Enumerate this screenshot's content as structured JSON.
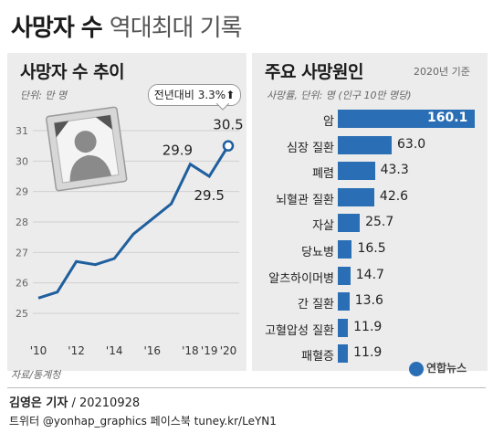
{
  "header": {
    "title_bold": "사망자 수",
    "title_rest": "역대최대 기록"
  },
  "colors": {
    "bar": "#2a6fb5",
    "line": "#1f5f9e",
    "accent": "#2a6fb5",
    "panel": "#ececec"
  },
  "left": {
    "title": "사망자 수 추이",
    "unit": "단위: 만 명",
    "callout_label": "전년대비",
    "callout_value": "3.3%",
    "callout_arrow": "⬆",
    "source": "자료/통계청"
  },
  "right": {
    "title": "주요 사망원인",
    "base": "2020년 기준",
    "unit": "사망률, 단위: 명 (인구 10만 명당)"
  },
  "footer": {
    "reporter": "김영은 기자",
    "date": " / 20210928",
    "sns": "트위터 @yonhap_graphics  페이스북 tuney.kr/LeYN1",
    "brand": "연합뉴스"
  },
  "chart_data": [
    {
      "type": "line",
      "x": [
        2010,
        2011,
        2012,
        2013,
        2014,
        2015,
        2016,
        2017,
        2018,
        2019,
        2020
      ],
      "values": [
        25.5,
        25.7,
        26.7,
        26.6,
        26.8,
        27.6,
        28.1,
        28.6,
        29.9,
        29.5,
        30.5
      ],
      "ylim": [
        25,
        31
      ],
      "yticks": [
        25,
        26,
        27,
        28,
        29,
        30,
        31
      ],
      "xtick_labels": [
        "'10",
        "'12",
        "'14",
        "'16",
        "'18",
        "'19",
        "'20"
      ],
      "xtick_years": [
        2010,
        2012,
        2014,
        2016,
        2018,
        2019,
        2020
      ],
      "data_labels": [
        {
          "year": 2018,
          "text": "29.9"
        },
        {
          "year": 2019,
          "text": "29.5"
        },
        {
          "year": 2020,
          "text": "30.5"
        }
      ],
      "grid": true
    },
    {
      "type": "bar",
      "orientation": "horizontal",
      "categories": [
        "암",
        "심장 질환",
        "폐렴",
        "뇌혈관 질환",
        "자살",
        "당뇨병",
        "알츠하이머병",
        "간 질환",
        "고혈압성 질환",
        "패혈증"
      ],
      "values": [
        160.1,
        63.0,
        43.3,
        42.6,
        25.7,
        16.5,
        14.7,
        13.6,
        11.9,
        11.9
      ],
      "value_labels": [
        "160.1",
        "63.0",
        "43.3",
        "42.6",
        "25.7",
        "16.5",
        "14.7",
        "13.6",
        "11.9",
        "11.9"
      ]
    }
  ]
}
